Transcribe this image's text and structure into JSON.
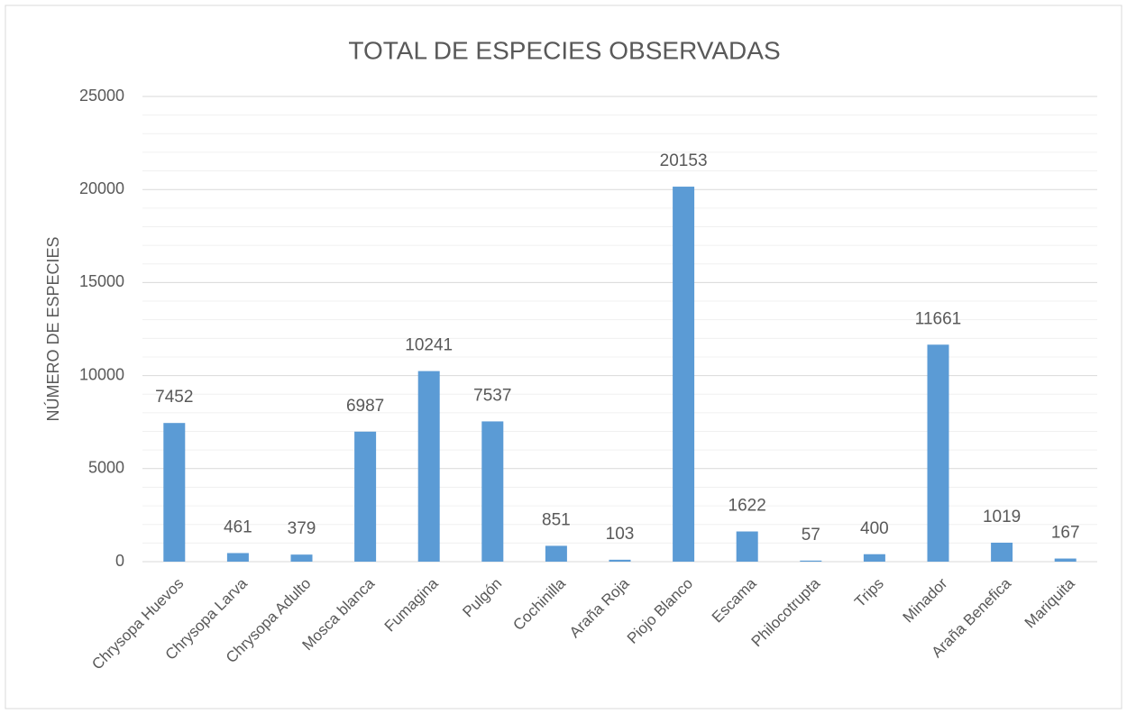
{
  "chart_data": {
    "type": "bar",
    "title": "TOTAL DE ESPECIES OBSERVADAS",
    "y_label": "NÚMERO DE ESPECIES",
    "categories": [
      "Chrysopa Huevos",
      "Chrysopa Larva",
      "Chrysopa Adulto",
      "Mosca blanca",
      "Fumagina",
      "Pulgón",
      "Cochinilla",
      "Araña Roja",
      "Piojo Blanco",
      "Escama",
      "Philocotrupta",
      "Trips",
      "Minador",
      "Araña Benefica",
      "Mariquita"
    ],
    "values": [
      7452,
      461,
      379,
      6987,
      10241,
      7537,
      851,
      103,
      20153,
      1622,
      57,
      400,
      11661,
      1019,
      167
    ],
    "color": "#5b9bd5",
    "ylim": [
      0,
      25000
    ],
    "yticks": [
      0,
      5000,
      10000,
      15000,
      20000,
      25000
    ],
    "minor_yticks": [
      1000,
      2000,
      3000,
      4000,
      6000,
      7000,
      8000,
      9000,
      11000,
      12000,
      13000,
      14000,
      16000,
      17000,
      18000,
      19000,
      21000,
      22000,
      23000,
      24000
    ],
    "grid": true,
    "minor_grid": true
  }
}
